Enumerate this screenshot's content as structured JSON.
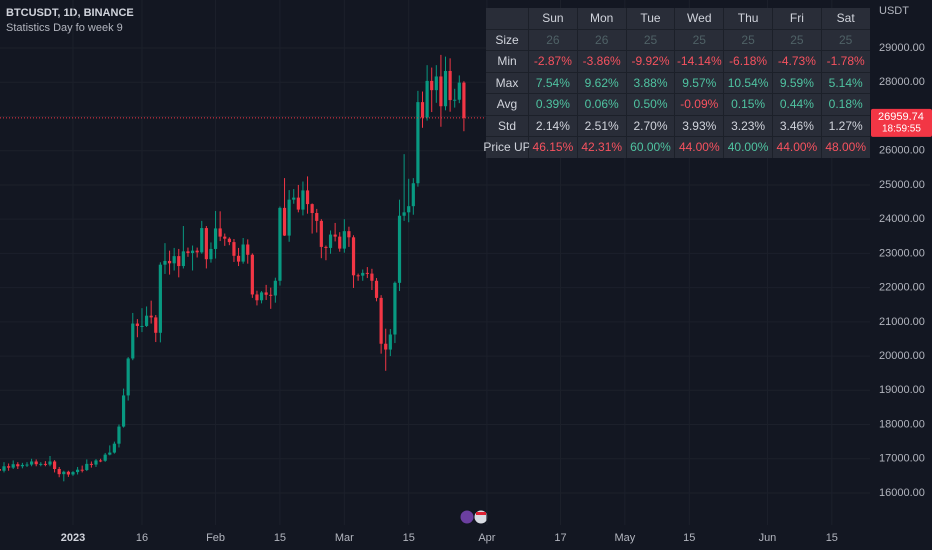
{
  "header": {
    "symbol": "BTCUSDT, 1D, BINANCE",
    "indicator": "Statistics Day fo week 9",
    "currency": "USDT"
  },
  "chart_data": {
    "type": "candlestick",
    "x": [
      -16,
      -15,
      -14,
      -13,
      -12,
      -11,
      -10,
      -9,
      -8,
      -7,
      -6,
      -5,
      -4,
      -3,
      -2,
      -1,
      0,
      1,
      2,
      3,
      4,
      5,
      6,
      7,
      8,
      9,
      10,
      11,
      12,
      13,
      14,
      15,
      16,
      17,
      18,
      19,
      20,
      21,
      22,
      23,
      24,
      25,
      26,
      27,
      28,
      29,
      30,
      31,
      32,
      33,
      34,
      35,
      36,
      37,
      38,
      39,
      40,
      41,
      42,
      43,
      44,
      45,
      46,
      47,
      48,
      49,
      50,
      51,
      52,
      53,
      54,
      55,
      56,
      57,
      58,
      59,
      60,
      61,
      62,
      63,
      64,
      65,
      66,
      67,
      68,
      69,
      70,
      71,
      72,
      73,
      74,
      75,
      76,
      77,
      78,
      79,
      80,
      81,
      82,
      83,
      84,
      85
    ],
    "open": [
      16700,
      16650,
      16780,
      16740,
      16840,
      16780,
      16820,
      16830,
      16920,
      16840,
      16850,
      16830,
      16920,
      16700,
      16550,
      16620,
      16540,
      16610,
      16680,
      16670,
      16850,
      16830,
      16950,
      16940,
      17120,
      17180,
      17440,
      17940,
      18850,
      19930,
      20950,
      20880,
      20880,
      21180,
      21130,
      20680,
      22670,
      22780,
      22710,
      22920,
      22630,
      23060,
      23010,
      23080,
      23030,
      23740,
      22830,
      23130,
      23730,
      23490,
      23430,
      23330,
      22930,
      22760,
      23260,
      22960,
      21800,
      21630,
      21860,
      21790,
      21770,
      22200,
      24330,
      23520,
      24570,
      24630,
      24280,
      24840,
      24440,
      24180,
      23950,
      23190,
      23160,
      23550,
      23490,
      23140,
      23650,
      23470,
      22360,
      22350,
      22430,
      22410,
      22200,
      21700,
      20360,
      20190,
      20630,
      22140,
      24100,
      24200,
      24380,
      25050,
      27420,
      26970,
      28040,
      27770,
      28170,
      27300,
      28330,
      27480,
      27490,
      27990
    ],
    "high": [
      16820,
      16900,
      16860,
      16950,
      16900,
      16880,
      16900,
      17000,
      16980,
      16900,
      16930,
      17080,
      16960,
      16760,
      16650,
      16650,
      16640,
      16760,
      16800,
      16980,
      16920,
      16990,
      17000,
      17170,
      17390,
      17500,
      18000,
      19050,
      19970,
      21260,
      21080,
      21400,
      21450,
      21620,
      21200,
      22740,
      23300,
      23080,
      23160,
      23130,
      23800,
      23170,
      23230,
      23170,
      23950,
      23800,
      23320,
      24240,
      24230,
      23580,
      23470,
      23420,
      23160,
      23450,
      23410,
      23000,
      21910,
      21900,
      22080,
      22000,
      22290,
      24370,
      25200,
      24850,
      24880,
      25000,
      25100,
      25250,
      24460,
      24300,
      24000,
      23230,
      23670,
      23890,
      23620,
      24000,
      23780,
      23530,
      22410,
      22530,
      22600,
      22550,
      22280,
      21780,
      20800,
      20790,
      22180,
      24570,
      25900,
      25180,
      25200,
      27750,
      27730,
      28500,
      28430,
      28500,
      28800,
      28750,
      28700,
      27810,
      28200,
      28030
    ],
    "low": [
      16580,
      16600,
      16650,
      16700,
      16700,
      16720,
      16760,
      16780,
      16780,
      16780,
      16780,
      16780,
      16600,
      16460,
      16340,
      16470,
      16500,
      16540,
      16600,
      16640,
      16740,
      16760,
      16900,
      16910,
      17100,
      17150,
      17330,
      17910,
      18700,
      19880,
      20550,
      20700,
      20850,
      20950,
      20410,
      20400,
      22400,
      22380,
      22500,
      22300,
      22560,
      22900,
      22500,
      22880,
      22990,
      22560,
      22730,
      22850,
      23360,
      23220,
      23240,
      22750,
      22630,
      22700,
      22700,
      21700,
      21480,
      21540,
      21640,
      21380,
      21560,
      22060,
      23510,
      23340,
      24450,
      24200,
      24110,
      24160,
      23580,
      23610,
      22860,
      22800,
      22990,
      23350,
      23050,
      23020,
      23190,
      21990,
      22200,
      22200,
      22280,
      21930,
      21600,
      20070,
      19570,
      20000,
      20380,
      21900,
      23950,
      23910,
      24130,
      24950,
      26670,
      26880,
      27130,
      27400,
      26700,
      27180,
      27140,
      27260,
      27390,
      26570
    ],
    "close": [
      16650,
      16780,
      16740,
      16840,
      16780,
      16820,
      16830,
      16920,
      16840,
      16850,
      16830,
      16920,
      16700,
      16550,
      16620,
      16540,
      16610,
      16680,
      16670,
      16850,
      16830,
      16950,
      16940,
      17120,
      17180,
      17440,
      17940,
      18850,
      19930,
      20950,
      20880,
      20880,
      21180,
      21130,
      20680,
      22670,
      22780,
      22710,
      22920,
      22630,
      23060,
      23010,
      23080,
      23030,
      23740,
      22830,
      23130,
      23730,
      23490,
      23430,
      23330,
      22930,
      22760,
      23260,
      22960,
      21800,
      21630,
      21860,
      21790,
      21770,
      22200,
      24330,
      23520,
      24570,
      24630,
      24280,
      24840,
      24440,
      24180,
      23950,
      23190,
      23160,
      23550,
      23490,
      23140,
      23650,
      23470,
      22360,
      22350,
      22430,
      22410,
      22200,
      21700,
      20360,
      20190,
      20630,
      22140,
      24100,
      24200,
      24380,
      25050,
      27420,
      26970,
      28040,
      27770,
      28170,
      27300,
      28330,
      27480,
      27490,
      27990,
      26960
    ],
    "up_color": "#089981",
    "down_color": "#f23645",
    "xlim": [
      -15.87,
      173.3
    ],
    "ylim": [
      15064,
      30404
    ],
    "xticks": [
      {
        "value": 0,
        "label": "2023"
      },
      {
        "value": 15,
        "label": "16"
      },
      {
        "value": 31,
        "label": "Feb"
      },
      {
        "value": 45,
        "label": "15"
      },
      {
        "value": 59,
        "label": "Mar"
      },
      {
        "value": 73,
        "label": "15"
      },
      {
        "value": 90,
        "label": "Apr"
      },
      {
        "value": 106,
        "label": "17"
      },
      {
        "value": 120,
        "label": "May"
      },
      {
        "value": 134,
        "label": "15"
      },
      {
        "value": 151,
        "label": "Jun"
      },
      {
        "value": 165,
        "label": "15"
      }
    ],
    "yticks": [
      {
        "value": 16000,
        "label": "16000.00"
      },
      {
        "value": 17000,
        "label": "17000.00"
      },
      {
        "value": 18000,
        "label": "18000.00"
      },
      {
        "value": 19000,
        "label": "19000.00"
      },
      {
        "value": 20000,
        "label": "20000.00"
      },
      {
        "value": 21000,
        "label": "21000.00"
      },
      {
        "value": 22000,
        "label": "22000.00"
      },
      {
        "value": 23000,
        "label": "23000.00"
      },
      {
        "value": 24000,
        "label": "24000.00"
      },
      {
        "value": 25000,
        "label": "25000.00"
      },
      {
        "value": 26000,
        "label": "26000.00"
      },
      {
        "value": 27000,
        "label": "27000.00"
      },
      {
        "value": 28000,
        "label": "28000.00"
      },
      {
        "value": 29000,
        "label": "29000.00"
      }
    ],
    "grid": true,
    "price_label": "26959.74",
    "countdown": "18:59:55"
  },
  "table": {
    "columns": [
      "Sun",
      "Mon",
      "Tue",
      "Wed",
      "Thu",
      "Fri",
      "Sat"
    ],
    "rows": [
      {
        "label": "Size",
        "cells": [
          "26",
          "26",
          "25",
          "25",
          "25",
          "25",
          "25"
        ],
        "colors": [
          "#4f6166",
          "#4f6166",
          "#4f6166",
          "#4f6166",
          "#4f6166",
          "#4f6166",
          "#4f6166"
        ]
      },
      {
        "label": "Min",
        "cells": [
          "-2.87%",
          "-3.86%",
          "-9.92%",
          "-14.14%",
          "-6.18%",
          "-4.73%",
          "-1.78%"
        ],
        "colors": [
          "#f7525f",
          "#f7525f",
          "#f7525f",
          "#f7525f",
          "#f7525f",
          "#f7525f",
          "#f7525f"
        ]
      },
      {
        "label": "Max",
        "cells": [
          "7.54%",
          "9.62%",
          "3.88%",
          "9.57%",
          "10.54%",
          "9.59%",
          "5.14%"
        ],
        "colors": [
          "#4fc3a1",
          "#4fc3a1",
          "#4fc3a1",
          "#4fc3a1",
          "#4fc3a1",
          "#4fc3a1",
          "#4fc3a1"
        ]
      },
      {
        "label": "Avg",
        "cells": [
          "0.39%",
          "0.06%",
          "0.50%",
          "-0.09%",
          "0.15%",
          "0.44%",
          "0.18%"
        ],
        "colors": [
          "#4fc3a1",
          "#4fc3a1",
          "#4fc3a1",
          "#f7525f",
          "#4fc3a1",
          "#4fc3a1",
          "#4fc3a1"
        ]
      },
      {
        "label": "Std",
        "cells": [
          "2.14%",
          "2.51%",
          "2.70%",
          "3.93%",
          "3.23%",
          "3.46%",
          "1.27%"
        ],
        "colors": [
          "#d1d4dc",
          "#d1d4dc",
          "#d1d4dc",
          "#d1d4dc",
          "#d1d4dc",
          "#d1d4dc",
          "#d1d4dc"
        ]
      },
      {
        "label": "Price UP",
        "cells": [
          "46.15%",
          "42.31%",
          "60.00%",
          "44.00%",
          "40.00%",
          "44.00%",
          "48.00%"
        ],
        "colors": [
          "#f7525f",
          "#f7525f",
          "#4fc3a1",
          "#f7525f",
          "#4fc3a1",
          "#f7525f",
          "#f7525f"
        ]
      }
    ]
  }
}
